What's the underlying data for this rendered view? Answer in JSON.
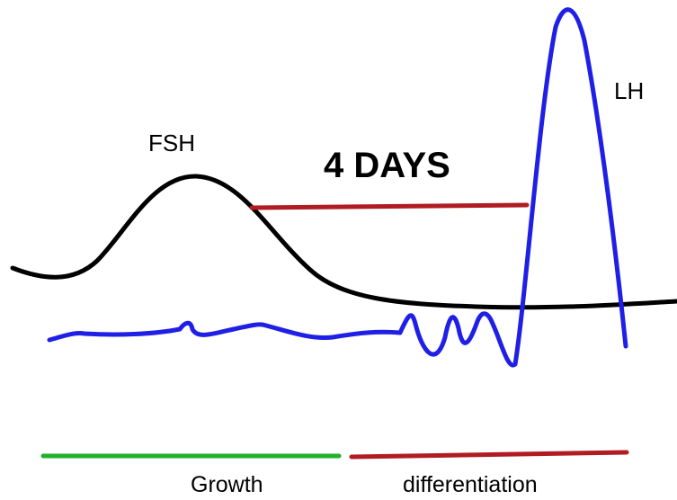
{
  "labels": {
    "fsh": "FSH",
    "lh": "LH",
    "duration": "4 DAYS",
    "growth": "Growth",
    "differentiation": "differentiation"
  },
  "colors": {
    "fsh_curve": "#000000",
    "lh_curve": "#1f1fe6",
    "duration_bar": "#b01c22",
    "duration_text": "#e8221b",
    "growth_bar": "#22b02a",
    "differentiation_bar": "#b01c22"
  }
}
